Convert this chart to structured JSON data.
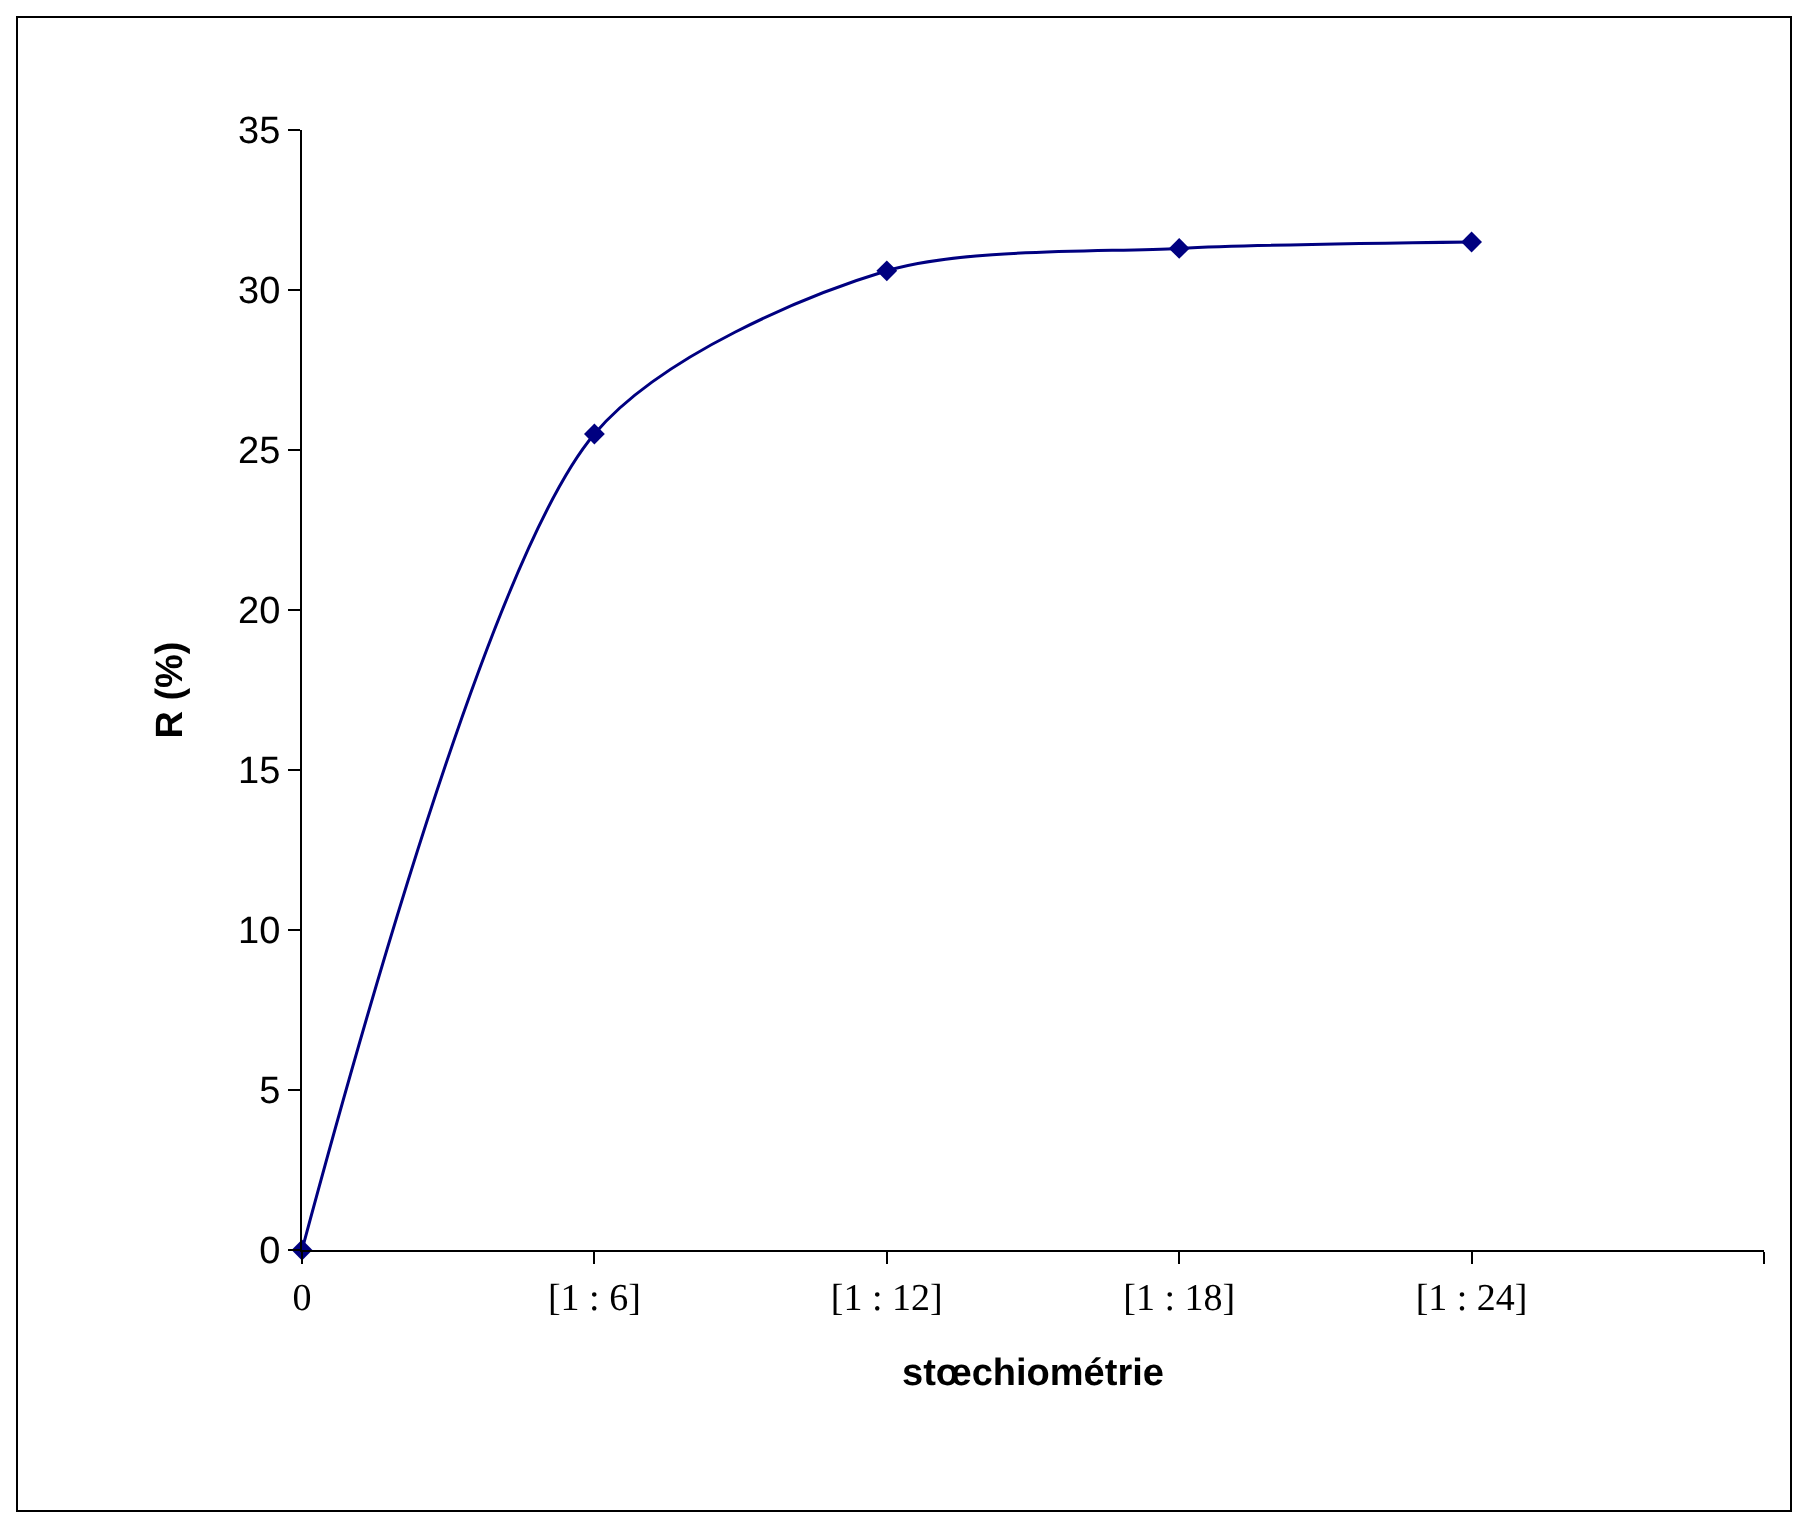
{
  "chart_data": {
    "type": "line",
    "xlabel": "stœchiométrie",
    "ylabel": "R (%)",
    "categories": [
      "0",
      "[1 : 6]",
      "[1 : 12]",
      "[1 : 18]",
      "[1 : 24]",
      null
    ],
    "series": [
      {
        "color": "#000080",
        "values": [
          0,
          25.5,
          30.6,
          31.3,
          31.5,
          null
        ]
      }
    ],
    "ylim": [
      0,
      35
    ],
    "yticks": [
      0,
      5,
      10,
      15,
      20,
      25,
      30,
      35
    ],
    "grid": false,
    "marker": "diamond",
    "line_style": "solid"
  }
}
